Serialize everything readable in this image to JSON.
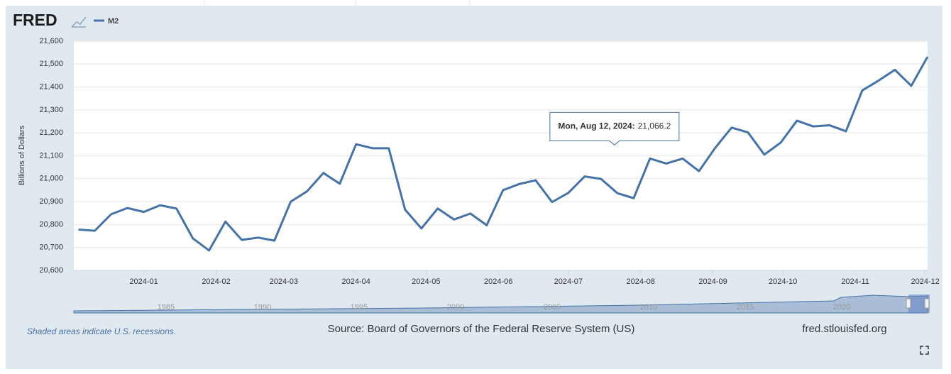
{
  "logo": "FRED",
  "footer": {
    "recessions": "Shaded areas indicate U.S. recessions.",
    "source": "Source: Board of Governors of the Federal Reserve System (US)",
    "site": "fred.stlouisfed.org"
  },
  "navigator": {
    "years": [
      "1985",
      "1990",
      "1995",
      "2000",
      "2005",
      "2010",
      "2015",
      "2020"
    ]
  },
  "chart_data": {
    "type": "line",
    "y_label": "Billions of Dollars",
    "x": [
      "2023-12-04",
      "2023-12-11",
      "2023-12-18",
      "2023-12-25",
      "2024-01-01",
      "2024-01-08",
      "2024-01-15",
      "2024-01-22",
      "2024-01-29",
      "2024-02-05",
      "2024-02-12",
      "2024-02-19",
      "2024-02-26",
      "2024-03-04",
      "2024-03-11",
      "2024-03-18",
      "2024-03-25",
      "2024-04-01",
      "2024-04-08",
      "2024-04-15",
      "2024-04-22",
      "2024-04-29",
      "2024-05-06",
      "2024-05-13",
      "2024-05-20",
      "2024-05-27",
      "2024-06-03",
      "2024-06-10",
      "2024-06-17",
      "2024-06-24",
      "2024-07-01",
      "2024-07-08",
      "2024-07-15",
      "2024-07-22",
      "2024-07-29",
      "2024-08-05",
      "2024-08-12",
      "2024-08-19",
      "2024-08-26",
      "2024-09-02",
      "2024-09-09",
      "2024-09-16",
      "2024-09-23",
      "2024-09-30",
      "2024-10-07",
      "2024-10-14",
      "2024-10-21",
      "2024-10-28",
      "2024-11-04",
      "2024-11-11",
      "2024-11-18",
      "2024-11-25",
      "2024-12-02"
    ],
    "series": [
      {
        "name": "M2",
        "color": "#4572a7",
        "values": [
          20778,
          20773,
          20845,
          20872,
          20855,
          20884,
          20870,
          20740,
          20687,
          20813,
          20733,
          20743,
          20730,
          20900,
          20945,
          21025,
          20978,
          21150,
          21133,
          21133,
          20865,
          20783,
          20870,
          20822,
          20848,
          20797,
          20950,
          20977,
          20993,
          20898,
          20938,
          21010,
          20999,
          20937,
          20915,
          21088,
          21066.2,
          21088,
          21033,
          21135,
          21223,
          21202,
          21105,
          21157,
          21253,
          21228,
          21233,
          21207,
          21385,
          21428,
          21475,
          21405,
          21532
        ]
      }
    ],
    "xlim": [
      "2023-12-02",
      "2024-12-02"
    ],
    "xticks": [
      {
        "value": "2024-01-01",
        "label": "2024-01"
      },
      {
        "value": "2024-02-01",
        "label": "2024-02"
      },
      {
        "value": "2024-03-01",
        "label": "2024-03"
      },
      {
        "value": "2024-04-01",
        "label": "2024-04"
      },
      {
        "value": "2024-05-01",
        "label": "2024-05"
      },
      {
        "value": "2024-06-01",
        "label": "2024-06"
      },
      {
        "value": "2024-07-01",
        "label": "2024-07"
      },
      {
        "value": "2024-08-01",
        "label": "2024-08"
      },
      {
        "value": "2024-09-01",
        "label": "2024-09"
      },
      {
        "value": "2024-10-01",
        "label": "2024-10"
      },
      {
        "value": "2024-11-01",
        "label": "2024-11"
      },
      {
        "value": "2024-12-01",
        "label": "2024-12"
      }
    ],
    "ylim": [
      20600,
      21600
    ],
    "yticks": [
      {
        "value": 20600,
        "label": "20,600"
      },
      {
        "value": 20700,
        "label": "20,700"
      },
      {
        "value": 20800,
        "label": "20,800"
      },
      {
        "value": 20900,
        "label": "20,900"
      },
      {
        "value": 21000,
        "label": "21,000"
      },
      {
        "value": 21100,
        "label": "21,100"
      },
      {
        "value": 21200,
        "label": "21,200"
      },
      {
        "value": 21300,
        "label": "21,300"
      },
      {
        "value": 21400,
        "label": "21,400"
      },
      {
        "value": 21500,
        "label": "21,500"
      },
      {
        "value": 21600,
        "label": "21,600"
      }
    ],
    "grid": true,
    "tooltip": {
      "label": "Mon, Aug 12, 2024:",
      "value": "21,066.2",
      "index": 36
    }
  }
}
